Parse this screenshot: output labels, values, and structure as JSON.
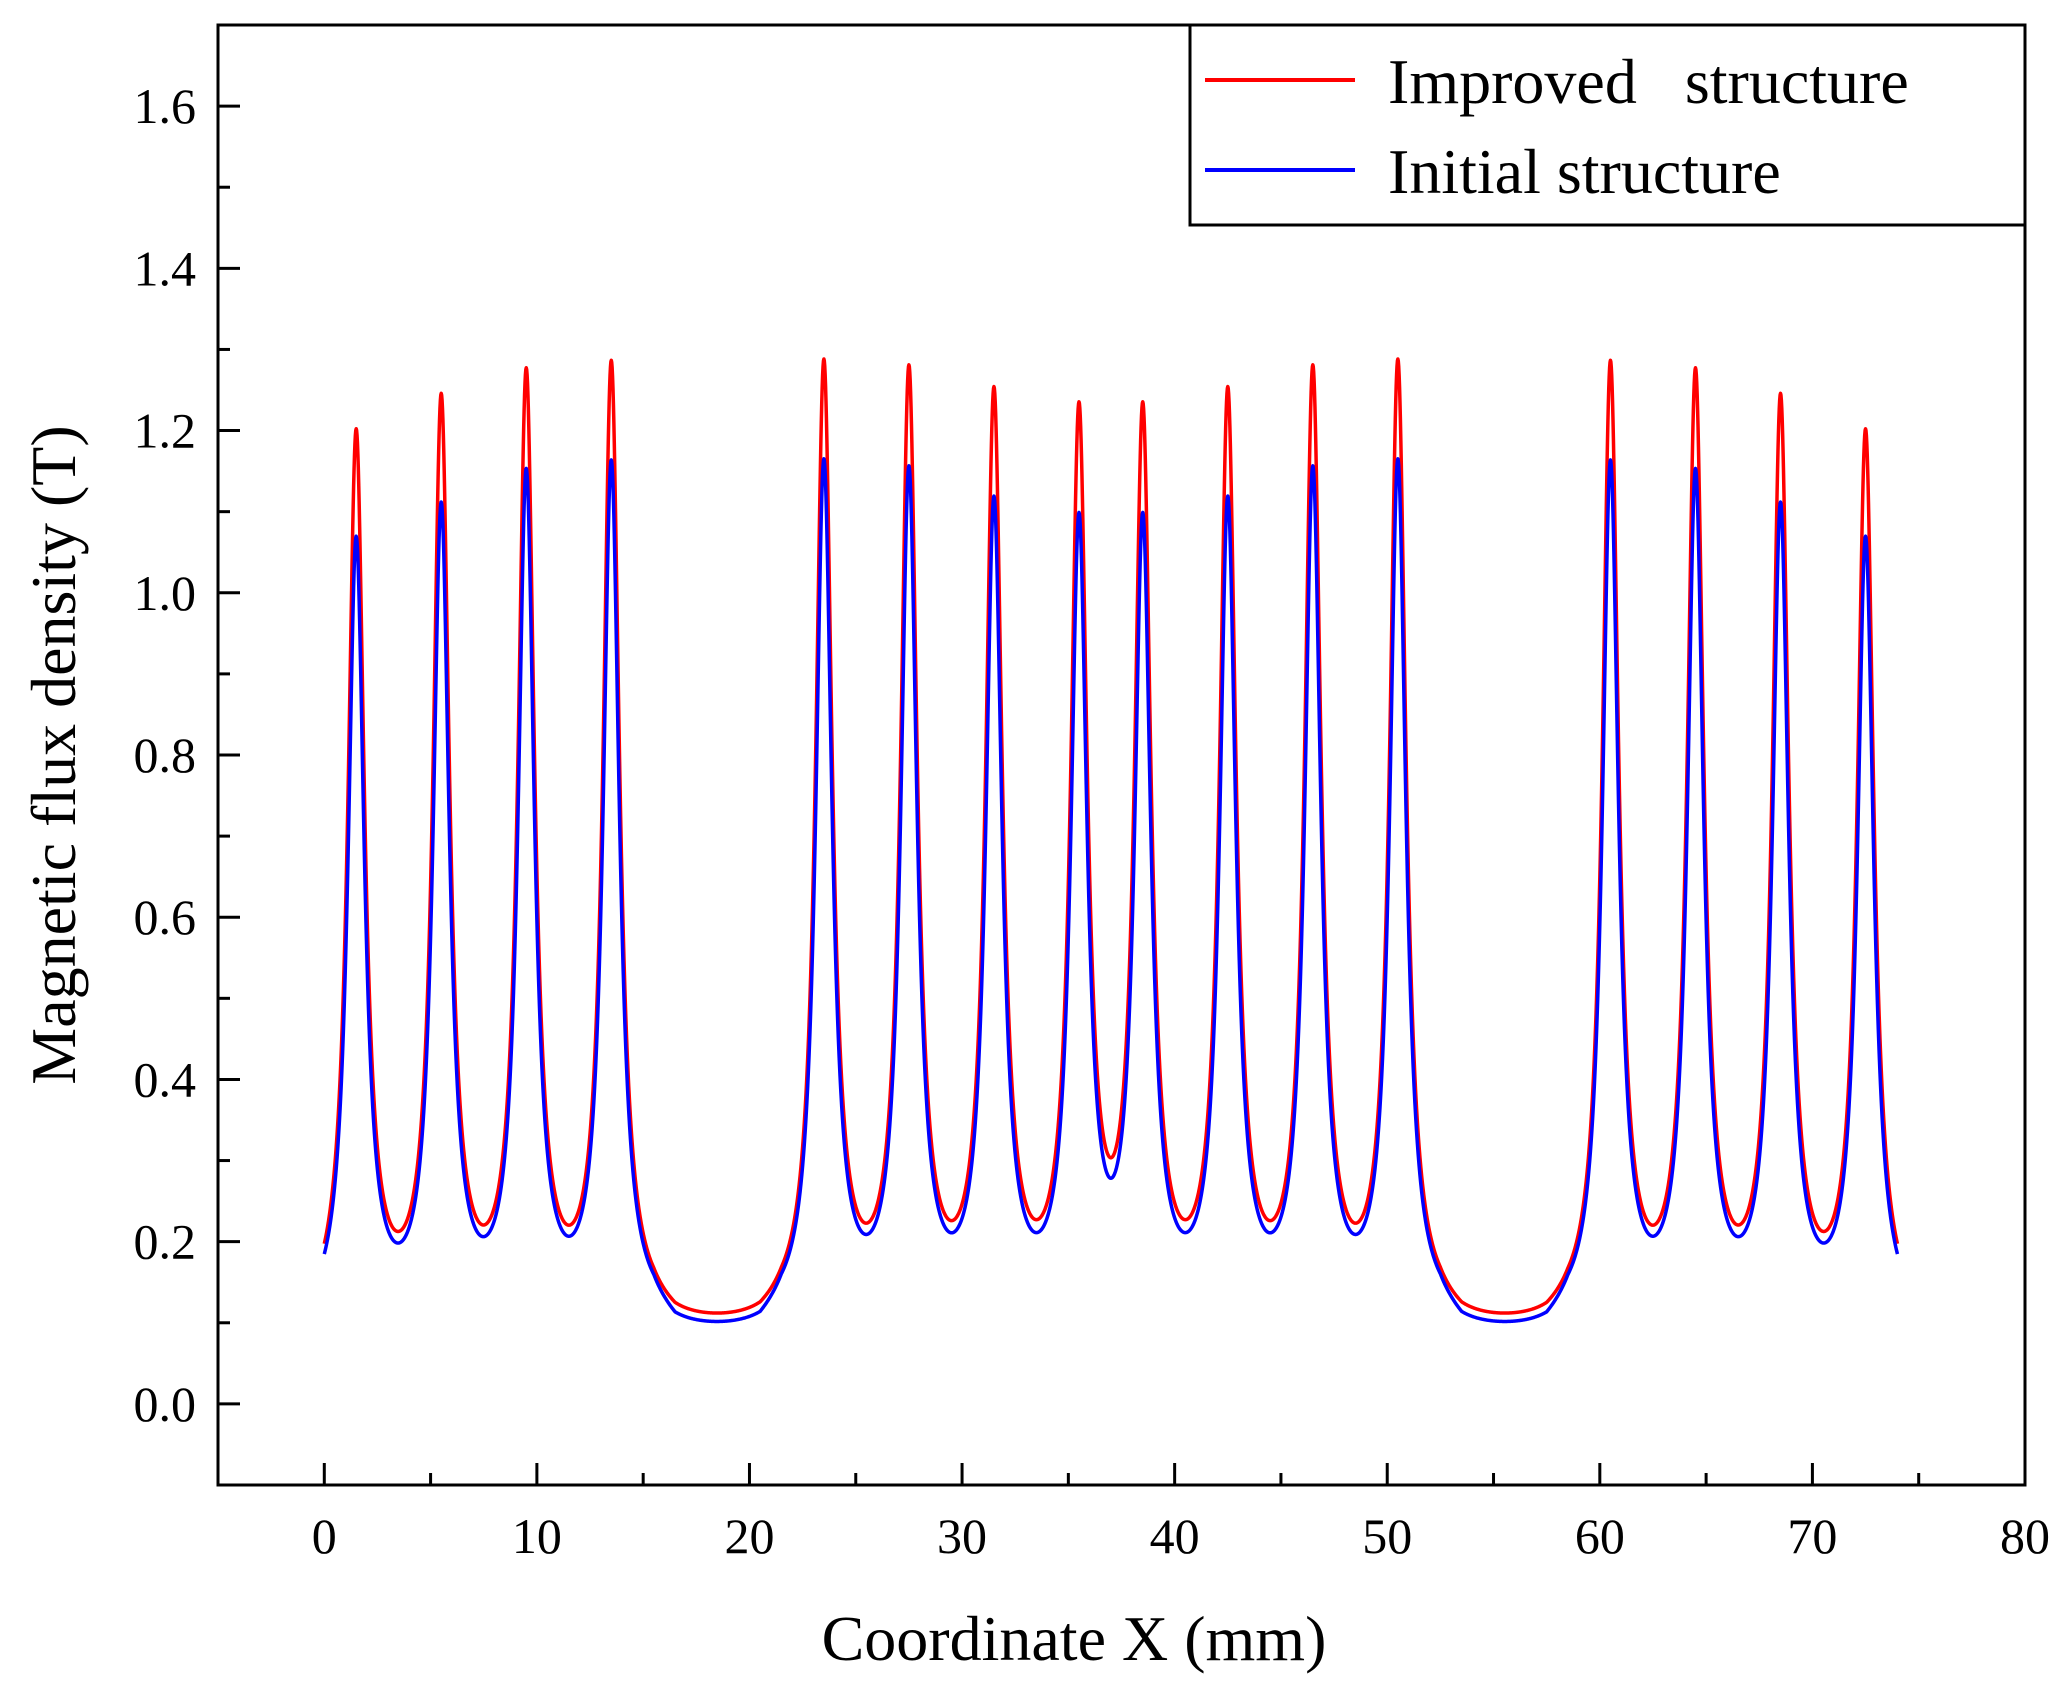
{
  "chart_data": {
    "type": "line",
    "title": "",
    "xlabel": "Coordinate  X (mm)",
    "ylabel": "Magnetic flux density (T)",
    "xlim": [
      -5,
      80
    ],
    "ylim": [
      -0.1,
      1.7
    ],
    "xticks": [
      0,
      10,
      20,
      30,
      40,
      50,
      60,
      70,
      80
    ],
    "xtick_labels": [
      "0",
      "10",
      "20",
      "30",
      "40",
      "50",
      "60",
      "70",
      "80"
    ],
    "yticks": [
      0.0,
      0.2,
      0.4,
      0.6,
      0.8,
      1.0,
      1.2,
      1.4,
      1.6
    ],
    "ytick_labels": [
      "0.0",
      "0.2",
      "0.4",
      "0.6",
      "0.8",
      "1.0",
      "1.2",
      "1.4",
      "1.6"
    ],
    "legend_position": "top-right",
    "x_range": [
      0,
      74
    ],
    "peak_positions": [
      1.5,
      5.5,
      9.5,
      13.5,
      23.5,
      27.5,
      31.5,
      35.5,
      38.5,
      42.5,
      46.5,
      50.5,
      60.5,
      64.5,
      68.5,
      72.5
    ],
    "series": [
      {
        "name": "Improved   structure",
        "color": "#ff0000",
        "peak_values": [
          1.18,
          1.21,
          1.24,
          1.26,
          1.26,
          1.24,
          1.21,
          1.18,
          1.18,
          1.21,
          1.24,
          1.26,
          1.26,
          1.24,
          1.21,
          1.18
        ],
        "trough_value": 0.09,
        "gap_value": 0.08
      },
      {
        "name": "Initial structure",
        "color": "#0000ff",
        "peak_values": [
          1.05,
          1.08,
          1.12,
          1.14,
          1.14,
          1.12,
          1.08,
          1.05,
          1.05,
          1.08,
          1.12,
          1.14,
          1.14,
          1.12,
          1.08,
          1.05
        ],
        "trough_value": 0.09,
        "gap_value": 0.073
      }
    ]
  }
}
